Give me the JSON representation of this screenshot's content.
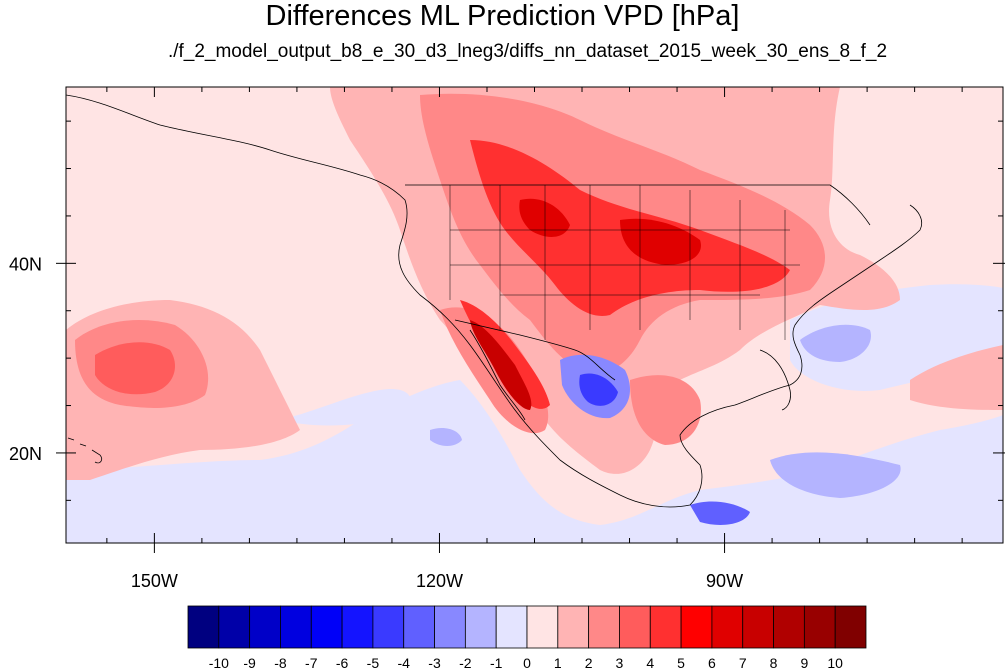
{
  "title": "Differences ML Prediction VPD [hPa]",
  "subtitle": "./f_2_model_output_b8_e_30_d3_lneg3/diffs_nn_dataset_2015_week_30_ens_8_f_2",
  "map": {
    "projection": "cylindrical equidistant",
    "lon_range": [
      -159.3,
      -60.7
    ],
    "lat_range": [
      10.5,
      58.6
    ],
    "x_ticks": [
      {
        "lon": -150,
        "label": "150W"
      },
      {
        "lon": -120,
        "label": "120W"
      },
      {
        "lon": -90,
        "label": "90W"
      }
    ],
    "y_ticks": [
      {
        "lat": 20,
        "label": "20N"
      },
      {
        "lat": 40,
        "label": "40N"
      }
    ],
    "field_description": "VPD difference: widespread positive (red) over western/central US, Great Plains, Baja/Gulf of California and central Pacific; negative (blue) over northeastern Mexico, Gulf/Caribbean, and parts of eastern Pacific."
  },
  "colorbar": {
    "colors": [
      "#000080",
      "#0000a8",
      "#0000c8",
      "#0000e0",
      "#0000f8",
      "#1414ff",
      "#3a3aff",
      "#6060ff",
      "#8888ff",
      "#b4b4ff",
      "#e4e4ff",
      "#ffe4e4",
      "#ffb4b4",
      "#ff8888",
      "#ff5c5c",
      "#ff3030",
      "#ff0000",
      "#e00000",
      "#c80000",
      "#b00000",
      "#980000",
      "#800000"
    ],
    "labels": [
      "-10",
      "-9",
      "-8",
      "-7",
      "-6",
      "-5",
      "-4",
      "-3",
      "-2",
      "-1",
      "0",
      "1",
      "2",
      "3",
      "4",
      "5",
      "6",
      "7",
      "8",
      "9",
      "10"
    ]
  }
}
